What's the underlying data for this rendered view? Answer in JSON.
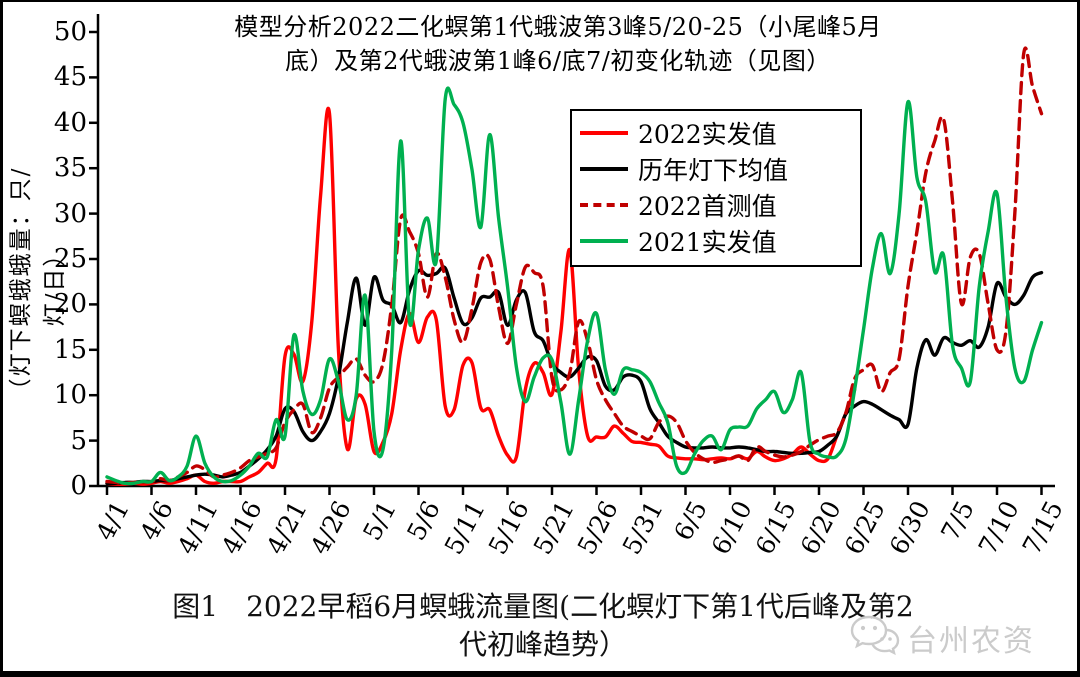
{
  "title": {
    "line1": "模型分析2022二化螟第1代蛾波第3峰5/20-25（小尾峰5月",
    "line2": "底）及第2代蛾波第1峰6/底7/初变化轨迹（见图）"
  },
  "caption": {
    "line1": "图1　2022早稻6月螟蛾流量图(二化螟灯下第1代后峰及第2",
    "line2": "代初峰趋势）"
  },
  "watermark": {
    "icon": "wechat-icon",
    "text": "台州农资"
  },
  "legend": {
    "entries": [
      {
        "label": "2022实发值",
        "color": "#ff0000",
        "dash": "solid"
      },
      {
        "label": "历年灯下均值",
        "color": "#000000",
        "dash": "solid"
      },
      {
        "label": "2022首测值",
        "color": "#c00000",
        "dash": "dashed"
      },
      {
        "label": "2021实发值",
        "color": "#00b050",
        "dash": "solid"
      }
    ]
  },
  "chart_data": {
    "type": "line",
    "title": "模型分析2022二化螟第1代蛾波第3峰5/20-25（小尾峰5月底）及第2代蛾波第1峰6/底7/初变化轨迹（见图）",
    "ylabel": "（灯下螟蛾蛾量：只/灯/日）",
    "xlabel": "",
    "ylim": [
      0,
      50
    ],
    "y_ticks": [
      0,
      5,
      10,
      15,
      20,
      25,
      30,
      35,
      40,
      45,
      50
    ],
    "grid": false,
    "legend_position": "upper middle-right inside",
    "x_start_date": "4/1",
    "x_end_date": "7/15",
    "x_interval_days": 1,
    "x_tick_labels": [
      "4/1",
      "4/6",
      "4/11",
      "4/16",
      "4/21",
      "4/26",
      "5/1",
      "5/6",
      "5/11",
      "5/16",
      "5/21",
      "5/26",
      "5/31",
      "6/5",
      "6/10",
      "6/15",
      "6/20",
      "6/25",
      "6/30",
      "7/5",
      "7/10",
      "7/15"
    ],
    "x_tick_day_index": [
      0,
      5,
      10,
      15,
      20,
      25,
      30,
      35,
      40,
      45,
      50,
      55,
      60,
      65,
      70,
      75,
      80,
      85,
      90,
      95,
      100,
      105
    ],
    "series": [
      {
        "name": "2022实发值",
        "color": "#ff0000",
        "dash": "solid",
        "values": [
          0.3,
          0.2,
          0.2,
          0.3,
          0.2,
          0.3,
          0.5,
          0.3,
          0.5,
          0.8,
          1.2,
          0.5,
          0.3,
          0.5,
          0.5,
          0.5,
          1.0,
          1.5,
          2.5,
          3.0,
          14.3,
          14.5,
          11.5,
          18.0,
          32.0,
          41.0,
          15.1,
          4.1,
          9.6,
          9.0,
          3.8,
          4.8,
          8.0,
          15.0,
          19.0,
          15.8,
          18.6,
          18.3,
          8.8,
          8.4,
          13.3,
          13.6,
          8.6,
          8.4,
          5.5,
          3.4,
          3.2,
          10.6,
          13.5,
          12.5,
          10.1,
          17.0,
          26.0,
          12.8,
          5.5,
          5.4,
          5.4,
          6.6,
          5.8,
          4.9,
          4.8,
          4.6,
          4.4,
          3.3,
          3.1,
          3.0,
          3.0,
          2.9,
          3.0,
          3.1,
          3.0,
          3.3,
          3.0,
          3.8,
          3.2,
          2.8,
          3.0,
          3.5,
          4.3,
          3.5,
          2.8,
          3.0,
          5.5,
          8.0,
          10.6,
          null,
          null,
          null,
          null,
          null,
          null,
          null,
          null,
          null,
          null,
          null,
          null,
          null,
          null,
          null,
          null,
          null,
          null,
          null,
          null,
          null,
          null
        ]
      },
      {
        "name": "历年灯下均值",
        "color": "#000000",
        "dash": "solid",
        "values": [
          0.3,
          0.3,
          0.4,
          0.4,
          0.5,
          0.5,
          0.6,
          0.6,
          0.8,
          1.0,
          1.2,
          1.3,
          1.2,
          1.0,
          1.2,
          1.5,
          2.2,
          3.0,
          4.0,
          5.5,
          8.5,
          8.2,
          6.0,
          5.0,
          6.0,
          8.0,
          12.0,
          18.0,
          22.9,
          17.7,
          23.0,
          20.5,
          19.9,
          18.0,
          21.6,
          23.7,
          23.2,
          23.4,
          24.0,
          20.7,
          17.9,
          18.5,
          20.7,
          20.8,
          21.3,
          17.7,
          20.5,
          21.3,
          17.0,
          16.0,
          13.5,
          12.5,
          12.0,
          13.0,
          14.2,
          13.8,
          11.0,
          10.6,
          12.0,
          12.2,
          11.5,
          8.5,
          7.0,
          5.5,
          4.8,
          4.3,
          4.2,
          4.2,
          4.3,
          4.2,
          4.2,
          4.3,
          4.2,
          4.0,
          3.8,
          3.8,
          3.7,
          3.6,
          3.6,
          3.7,
          3.8,
          4.5,
          5.5,
          7.9,
          8.8,
          9.3,
          9.0,
          8.4,
          7.8,
          7.3,
          6.8,
          13.0,
          16.1,
          14.4,
          16.3,
          15.8,
          15.5,
          16.0,
          15.3,
          17.5,
          22.3,
          20.8,
          20.0,
          21.0,
          23.0,
          23.5
        ]
      },
      {
        "name": "2022首测值",
        "color": "#c00000",
        "dash": "dashed",
        "values": [
          0.5,
          0.4,
          0.3,
          0.4,
          0.4,
          0.5,
          0.8,
          0.6,
          1.0,
          1.5,
          2.2,
          1.8,
          1.0,
          1.2,
          1.5,
          2.0,
          2.8,
          3.2,
          3.6,
          4.2,
          7.0,
          8.4,
          9.0,
          5.9,
          7.5,
          10.8,
          12.0,
          13.1,
          14.0,
          12.2,
          11.5,
          13.5,
          20.0,
          29.4,
          28.0,
          25.6,
          20.8,
          25.6,
          23.0,
          18.3,
          15.8,
          19.5,
          24.6,
          25.0,
          19.7,
          15.7,
          20.0,
          24.1,
          23.5,
          22.0,
          11.9,
          10.6,
          12.5,
          18.1,
          16.0,
          11.7,
          9.5,
          8.0,
          6.6,
          6.0,
          5.5,
          5.2,
          7.0,
          7.7,
          7.0,
          5.0,
          3.7,
          3.0,
          2.6,
          2.8,
          3.0,
          3.3,
          2.8,
          4.3,
          3.8,
          3.4,
          3.2,
          3.4,
          3.8,
          4.5,
          5.1,
          5.5,
          5.9,
          8.0,
          11.8,
          12.8,
          13.3,
          10.4,
          12.5,
          14.0,
          22.0,
          28.0,
          34.5,
          38.0,
          40.4,
          31.4,
          20.1,
          25.2,
          25.6,
          20.1,
          15.0,
          17.0,
          30.0,
          47.6,
          44.0,
          41.0
        ]
      },
      {
        "name": "2021实发值",
        "color": "#00b050",
        "dash": "solid",
        "values": [
          1.0,
          0.6,
          0.3,
          0.3,
          0.5,
          0.5,
          1.5,
          0.6,
          1.0,
          2.2,
          5.5,
          2.5,
          1.0,
          0.5,
          0.6,
          1.2,
          2.2,
          3.6,
          3.2,
          7.3,
          5.5,
          16.6,
          10.5,
          7.9,
          9.5,
          14.0,
          11.5,
          7.3,
          10.0,
          21.0,
          6.0,
          4.0,
          15.0,
          38.0,
          18.0,
          26.0,
          29.5,
          24.8,
          42.6,
          42.0,
          40.0,
          34.9,
          28.5,
          38.7,
          29.5,
          22.0,
          13.1,
          9.3,
          12.0,
          14.1,
          13.9,
          9.2,
          3.5,
          9.5,
          16.0,
          19.0,
          12.8,
          10.1,
          12.8,
          12.8,
          12.5,
          11.5,
          9.2,
          7.0,
          2.2,
          1.5,
          3.5,
          5.0,
          5.5,
          4.0,
          6.2,
          6.5,
          6.6,
          8.5,
          9.5,
          10.4,
          8.1,
          9.5,
          12.5,
          4.8,
          3.5,
          3.2,
          3.3,
          5.1,
          10.6,
          17.2,
          24.0,
          27.8,
          23.4,
          30.0,
          42.3,
          34.0,
          31.3,
          23.6,
          25.4,
          15.5,
          13.0,
          11.5,
          21.9,
          28.0,
          32.2,
          20.8,
          13.0,
          11.5,
          15.0,
          18.0
        ]
      }
    ]
  }
}
